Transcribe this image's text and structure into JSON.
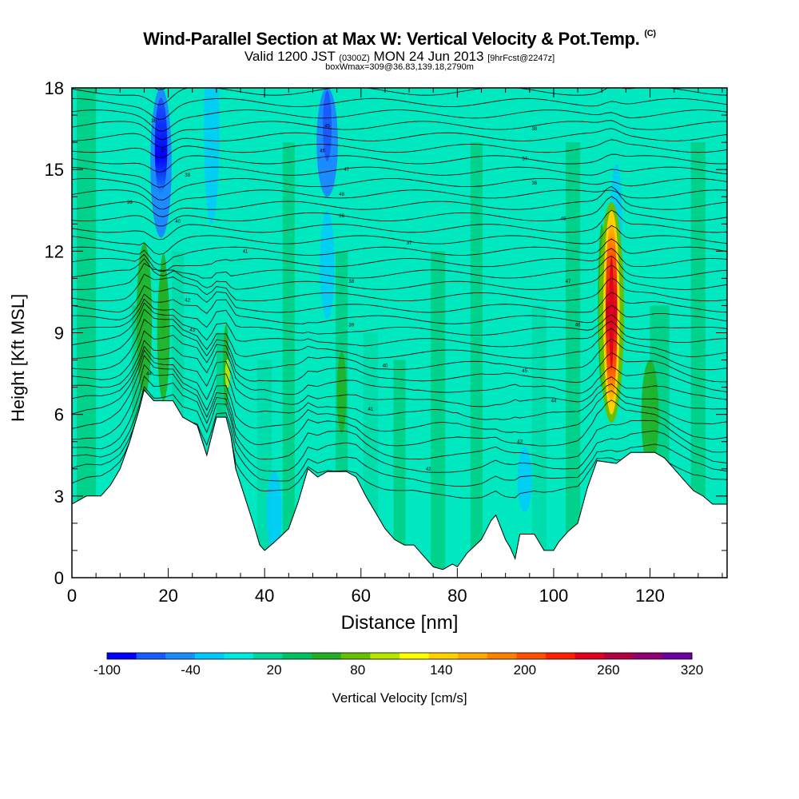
{
  "header": {
    "title": "Wind-Parallel Section at Max W: Vertical Velocity & Pot.Temp.",
    "title_tag": "(C)",
    "valid_main": "Valid 1200 JST",
    "valid_utc": "(0300Z)",
    "valid_date": "MON 24 Jun 2013",
    "forecast": "[9hrFcst@2247z]",
    "box_info": "boxWmax=309@36.83,139.18,2790m"
  },
  "chart_data": {
    "type": "heatmap",
    "xlabel": "Distance [nm]",
    "ylabel": "Height [Kft MSL]",
    "x_ticks": [
      0,
      20,
      40,
      60,
      80,
      100,
      120
    ],
    "y_ticks": [
      0,
      3,
      6,
      9,
      12,
      15,
      18
    ],
    "xlim": [
      0,
      136
    ],
    "ylim": [
      0,
      18
    ],
    "colorbar": {
      "label": "Vertical Velocity [cm/s]",
      "tick_labels": [
        "-100",
        "-40",
        "20",
        "80",
        "140",
        "200",
        "260",
        "320"
      ],
      "colors": [
        "#0000ff",
        "#1a5bff",
        "#1a8cff",
        "#00c8ff",
        "#00e8e0",
        "#00d49a",
        "#00c060",
        "#22b022",
        "#66c000",
        "#b4e600",
        "#ffff00",
        "#ffd000",
        "#ffa800",
        "#ff8000",
        "#ff5000",
        "#ff2000",
        "#e00020",
        "#b00040",
        "#900070",
        "#6a00a0"
      ]
    },
    "terrain_profile": [
      [
        0,
        2.7
      ],
      [
        3,
        3.0
      ],
      [
        6,
        3.0
      ],
      [
        8,
        3.4
      ],
      [
        10,
        4.0
      ],
      [
        12,
        5.0
      ],
      [
        14,
        6.2
      ],
      [
        15,
        6.9
      ],
      [
        17,
        6.5
      ],
      [
        21,
        6.5
      ],
      [
        23,
        5.9
      ],
      [
        26,
        5.6
      ],
      [
        28,
        4.5
      ],
      [
        30,
        5.9
      ],
      [
        32,
        5.9
      ],
      [
        33,
        5.2
      ],
      [
        34,
        4.0
      ],
      [
        36,
        2.9
      ],
      [
        38,
        1.8
      ],
      [
        39,
        1.2
      ],
      [
        40,
        1.0
      ],
      [
        42,
        1.3
      ],
      [
        45,
        1.8
      ],
      [
        47,
        2.8
      ],
      [
        49,
        4.0
      ],
      [
        51,
        3.7
      ],
      [
        53,
        3.9
      ],
      [
        57,
        3.9
      ],
      [
        59,
        3.7
      ],
      [
        61,
        3.0
      ],
      [
        63,
        2.4
      ],
      [
        65,
        1.8
      ],
      [
        67,
        1.4
      ],
      [
        69,
        1.2
      ],
      [
        71,
        1.2
      ],
      [
        73,
        0.8
      ],
      [
        75,
        0.4
      ],
      [
        77,
        0.3
      ],
      [
        79,
        0.5
      ],
      [
        80,
        0.4
      ],
      [
        82,
        0.9
      ],
      [
        85,
        1.4
      ],
      [
        87,
        2.1
      ],
      [
        88,
        2.3
      ],
      [
        90,
        1.4
      ],
      [
        91,
        1.1
      ],
      [
        92,
        0.7
      ],
      [
        93,
        1.6
      ],
      [
        96,
        1.6
      ],
      [
        98,
        1.0
      ],
      [
        100,
        1.0
      ],
      [
        101,
        1.3
      ],
      [
        103,
        1.7
      ],
      [
        105,
        2.0
      ],
      [
        107,
        3.3
      ],
      [
        109,
        4.3
      ],
      [
        113,
        4.2
      ],
      [
        116,
        4.6
      ],
      [
        121,
        4.6
      ],
      [
        123,
        4.4
      ],
      [
        125,
        4.0
      ],
      [
        127,
        3.6
      ],
      [
        129,
        3.2
      ],
      [
        131,
        3.0
      ],
      [
        133,
        2.7
      ],
      [
        136,
        2.7
      ]
    ],
    "updraft_core": {
      "x": 112,
      "height_range": [
        6,
        13.5
      ],
      "peak_value": 309,
      "peak_value_units": "cm/s"
    },
    "downdraft_cores": [
      {
        "x": 18.5,
        "height_range": [
          12.5,
          18
        ],
        "min_value": -100
      },
      {
        "x": 53,
        "height_range": [
          14,
          18
        ],
        "min_value": -40
      }
    ],
    "theta_contour_labels": [
      "36",
      "37",
      "38",
      "39",
      "40",
      "41",
      "42",
      "43",
      "44",
      "45",
      "46",
      "47",
      "48"
    ]
  }
}
